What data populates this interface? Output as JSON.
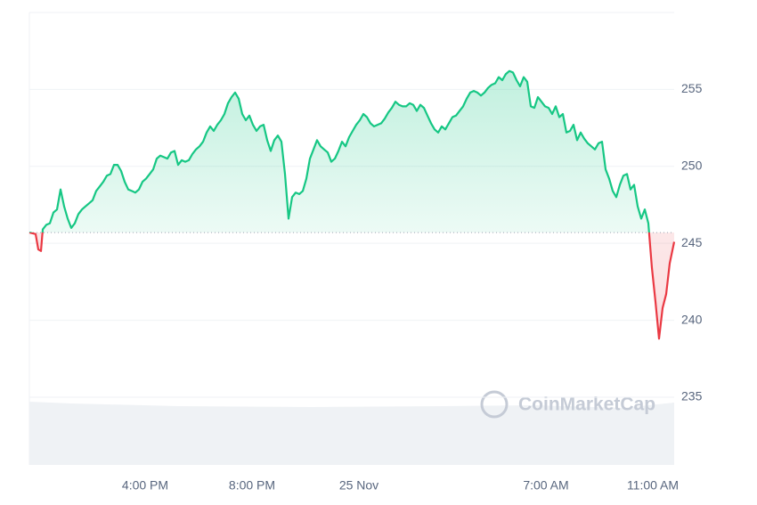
{
  "chart_data": {
    "type": "line",
    "watermark": "CoinMarketCap",
    "color": "#16c784",
    "below_color": "#ea3943",
    "baseline": 245.7,
    "xlim": [
      700,
      2148
    ],
    "ylim": [
      230.6,
      260
    ],
    "xticks": [
      {
        "value": 960,
        "label": "4:00 PM"
      },
      {
        "value": 1200,
        "label": "8:00 PM"
      },
      {
        "value": 1440,
        "label": "25 Nov"
      },
      {
        "value": 1860,
        "label": "7:00 AM"
      },
      {
        "value": 2100,
        "label": "11:00 AM"
      }
    ],
    "yticks": [
      235,
      240,
      245,
      250,
      255
    ],
    "grid": true,
    "x": [
      700,
      714,
      720,
      726,
      730,
      738,
      746,
      754,
      762,
      770,
      778,
      786,
      794,
      802,
      810,
      818,
      826,
      834,
      842,
      850,
      858,
      866,
      874,
      882,
      890,
      898,
      906,
      914,
      922,
      930,
      938,
      946,
      954,
      962,
      970,
      978,
      986,
      994,
      1002,
      1010,
      1018,
      1026,
      1034,
      1042,
      1050,
      1058,
      1066,
      1074,
      1082,
      1090,
      1098,
      1106,
      1114,
      1122,
      1130,
      1138,
      1146,
      1154,
      1162,
      1170,
      1178,
      1186,
      1194,
      1202,
      1210,
      1218,
      1226,
      1234,
      1242,
      1250,
      1258,
      1266,
      1274,
      1282,
      1290,
      1298,
      1306,
      1314,
      1322,
      1330,
      1338,
      1346,
      1354,
      1362,
      1370,
      1378,
      1386,
      1394,
      1402,
      1410,
      1418,
      1426,
      1434,
      1442,
      1450,
      1458,
      1466,
      1474,
      1482,
      1490,
      1498,
      1506,
      1514,
      1522,
      1530,
      1538,
      1546,
      1554,
      1562,
      1570,
      1578,
      1586,
      1594,
      1602,
      1610,
      1618,
      1626,
      1634,
      1642,
      1650,
      1658,
      1666,
      1674,
      1682,
      1690,
      1698,
      1706,
      1714,
      1722,
      1730,
      1738,
      1746,
      1754,
      1762,
      1770,
      1778,
      1786,
      1794,
      1802,
      1810,
      1818,
      1826,
      1834,
      1842,
      1850,
      1858,
      1866,
      1874,
      1882,
      1890,
      1898,
      1906,
      1914,
      1922,
      1930,
      1938,
      1946,
      1954,
      1962,
      1970,
      1978,
      1986,
      1994,
      2002,
      2010,
      2018,
      2026,
      2034,
      2042,
      2050,
      2058,
      2066,
      2074,
      2082,
      2090,
      2098,
      2106,
      2114,
      2122,
      2130,
      2138,
      2148
    ],
    "values": [
      245.7,
      245.6,
      244.6,
      244.5,
      245.9,
      246.2,
      246.3,
      247.0,
      247.2,
      248.5,
      247.4,
      246.6,
      246.0,
      246.3,
      246.9,
      247.2,
      247.4,
      247.6,
      247.8,
      248.4,
      248.7,
      249.0,
      249.4,
      249.5,
      250.1,
      250.1,
      249.7,
      249.0,
      248.5,
      248.4,
      248.3,
      248.5,
      249.0,
      249.2,
      249.5,
      249.8,
      250.5,
      250.7,
      250.6,
      250.5,
      250.9,
      251.0,
      250.1,
      250.4,
      250.3,
      250.4,
      250.8,
      251.1,
      251.3,
      251.6,
      252.2,
      252.6,
      252.3,
      252.7,
      253.0,
      253.4,
      254.1,
      254.5,
      254.8,
      254.4,
      253.4,
      253.0,
      253.3,
      252.7,
      252.3,
      252.6,
      252.7,
      251.7,
      251.0,
      251.7,
      252.0,
      251.6,
      249.5,
      246.6,
      248.0,
      248.3,
      248.2,
      248.4,
      249.2,
      250.5,
      251.1,
      251.7,
      251.3,
      251.1,
      250.9,
      250.3,
      250.5,
      251.0,
      251.6,
      251.3,
      251.9,
      252.3,
      252.7,
      253.0,
      253.4,
      253.2,
      252.8,
      252.6,
      252.7,
      252.8,
      253.1,
      253.5,
      253.8,
      254.2,
      254.0,
      253.9,
      253.9,
      254.1,
      254.0,
      253.6,
      254.0,
      253.8,
      253.3,
      252.8,
      252.4,
      252.2,
      252.6,
      252.4,
      252.8,
      253.2,
      253.3,
      253.6,
      253.9,
      254.4,
      254.8,
      254.9,
      254.8,
      254.6,
      254.8,
      255.1,
      255.3,
      255.4,
      255.8,
      255.6,
      256.0,
      256.2,
      256.1,
      255.6,
      255.2,
      255.8,
      255.5,
      253.9,
      253.8,
      254.5,
      254.2,
      253.9,
      253.8,
      253.4,
      253.9,
      253.2,
      253.4,
      252.2,
      252.3,
      252.7,
      251.7,
      252.2,
      251.8,
      251.5,
      251.3,
      251.1,
      251.5,
      251.6,
      249.8,
      249.2,
      248.4,
      248.0,
      248.8,
      249.4,
      249.5,
      248.5,
      248.8,
      247.4,
      246.6,
      247.2,
      246.3,
      243.4,
      241.2,
      238.8,
      240.8,
      241.7,
      243.7,
      245.1
    ]
  }
}
